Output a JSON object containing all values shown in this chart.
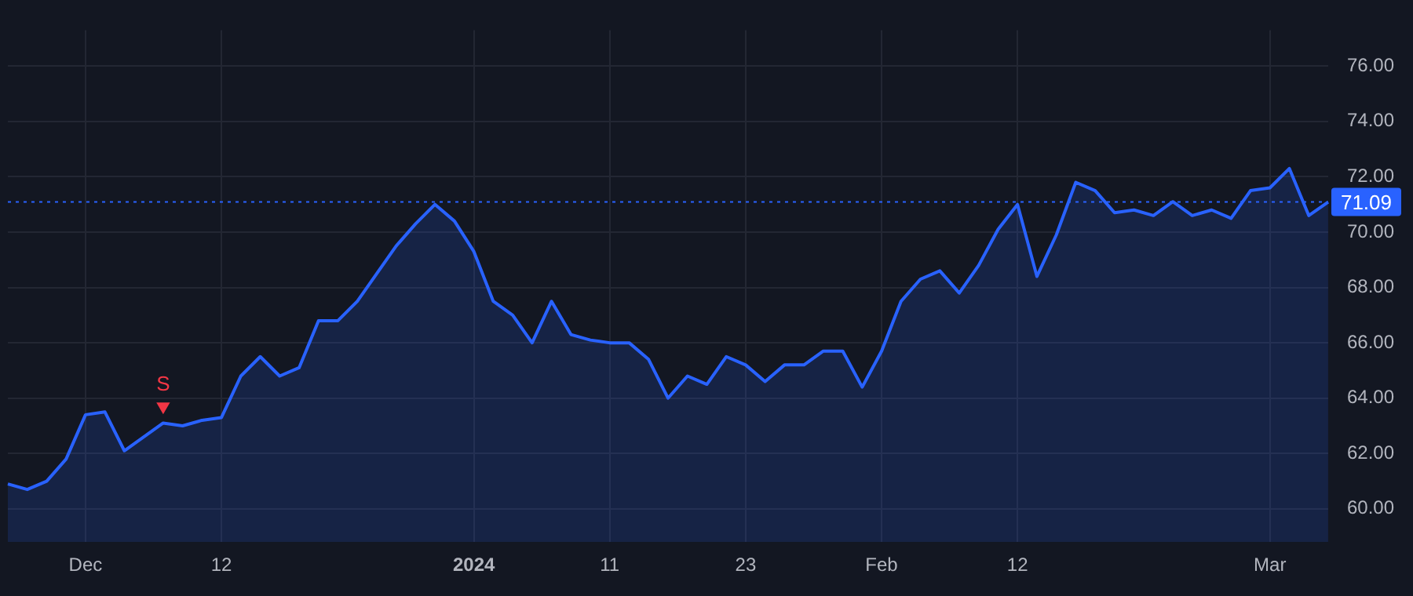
{
  "chart_data": {
    "type": "area",
    "categories": [
      null,
      null,
      null,
      null,
      "Dec",
      null,
      null,
      null,
      null,
      null,
      null,
      "12",
      null,
      null,
      null,
      null,
      null,
      null,
      null,
      null,
      null,
      null,
      null,
      null,
      "2024",
      null,
      null,
      null,
      null,
      null,
      null,
      "11",
      null,
      null,
      null,
      null,
      null,
      null,
      "23",
      null,
      null,
      null,
      null,
      null,
      null,
      "Feb",
      null,
      null,
      null,
      null,
      null,
      null,
      "12",
      null,
      null,
      null,
      null,
      null,
      null,
      null,
      null,
      null,
      null,
      null,
      null,
      "Mar",
      null,
      null,
      null
    ],
    "series": [
      {
        "color": "#2962ff",
        "values": [
          60.9,
          60.7,
          61.0,
          61.8,
          63.4,
          63.5,
          62.1,
          62.6,
          63.1,
          63.0,
          63.2,
          63.3,
          64.8,
          65.5,
          64.8,
          65.1,
          66.8,
          66.8,
          67.5,
          68.5,
          69.5,
          70.3,
          71.0,
          70.4,
          69.3,
          67.5,
          67.0,
          66.0,
          67.5,
          66.3,
          66.1,
          66.0,
          66.0,
          65.4,
          64.0,
          64.8,
          64.5,
          65.5,
          65.2,
          64.6,
          65.2,
          65.2,
          65.7,
          65.7,
          64.4,
          65.7,
          67.5,
          68.3,
          68.6,
          67.8,
          68.8,
          70.1,
          71.0,
          68.4,
          69.9,
          71.8,
          71.5,
          70.7,
          70.8,
          70.6,
          71.1,
          70.6,
          70.8,
          70.5,
          71.5,
          71.6,
          72.3,
          70.6,
          71.09
        ]
      },
      {
        "type": "scatter",
        "color": "#f23645",
        "marker": "triangle",
        "values": [
          null,
          null,
          null,
          null,
          null,
          null,
          null,
          null,
          63.7,
          null,
          null,
          null,
          null,
          null,
          null,
          null,
          null,
          null,
          null,
          null,
          null,
          null,
          null,
          null,
          null,
          null,
          null,
          null,
          null,
          null,
          null,
          null,
          null,
          null,
          null,
          null,
          null,
          null,
          null,
          null,
          null,
          null,
          null,
          null,
          null,
          null,
          null,
          null,
          null,
          null,
          null,
          null,
          null,
          null,
          null,
          null,
          null,
          null,
          null,
          null,
          null,
          null,
          null,
          null,
          null,
          null,
          null,
          null,
          null
        ]
      }
    ],
    "ylim": [
      58.8,
      77.3
    ],
    "yticks": [
      {
        "value": 60,
        "label": "60.00"
      },
      {
        "value": 62,
        "label": "62.00"
      },
      {
        "value": 64,
        "label": "64.00"
      },
      {
        "value": 66,
        "label": "66.00"
      },
      {
        "value": 68,
        "label": "68.00"
      },
      {
        "value": 70,
        "label": "70.00"
      },
      {
        "value": 72,
        "label": "72.00"
      },
      {
        "value": 74,
        "label": "74.00"
      },
      {
        "value": 76,
        "label": "76.00"
      }
    ],
    "ref_lines": [
      {
        "axis": "y",
        "value": 71.09,
        "label": "71.09",
        "color": "#2962ff",
        "line_style": "dotted"
      }
    ],
    "annotations": [
      "S"
    ],
    "grid": true,
    "legend": false,
    "marker": "none",
    "line_style": "solid"
  }
}
